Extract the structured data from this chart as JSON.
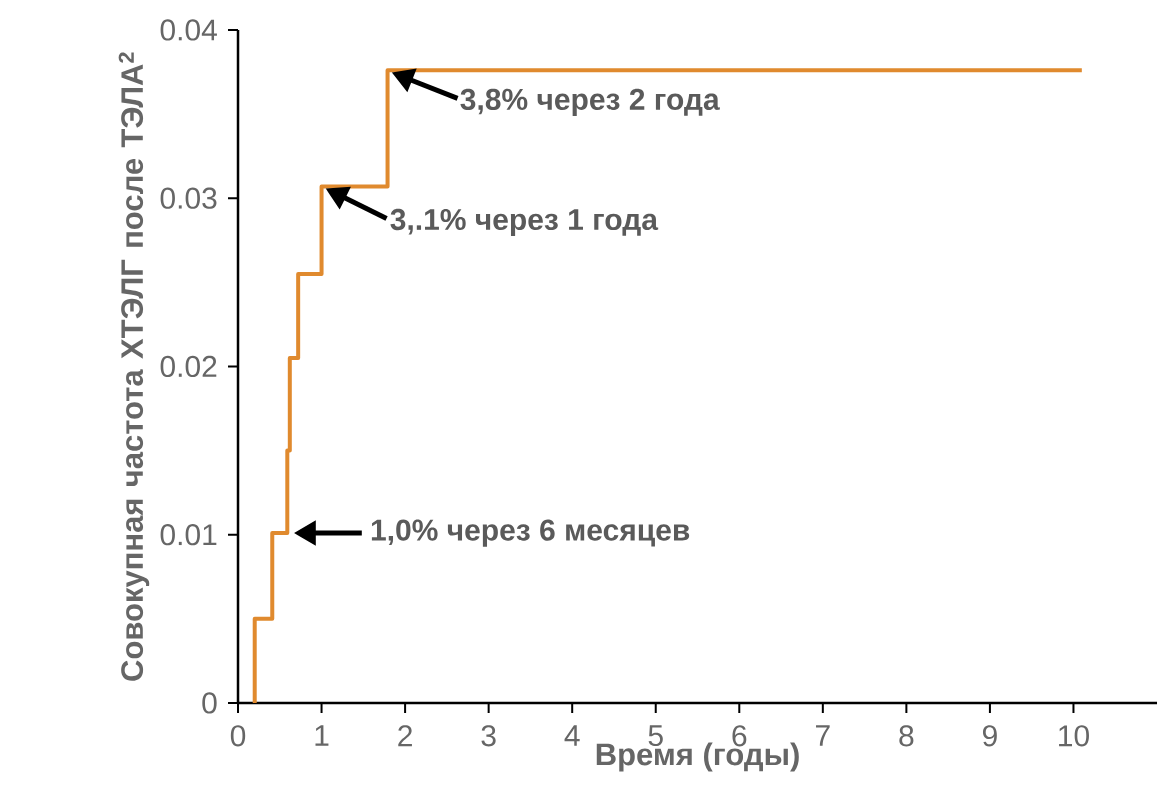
{
  "chart_data": {
    "type": "step",
    "xlabel": "Время (годы)",
    "ylabel": "Совокупная частота ХТЭЛГ после ТЭЛА$^{2}$",
    "x": [
      0.2,
      0.2,
      0.41,
      0.59,
      0.62,
      0.72,
      1.0,
      1.79,
      10.1
    ],
    "series": [
      {
        "color": "#e08a2e",
        "values": [
          0,
          0.005,
          0.0101,
          0.015,
          0.0205,
          0.0255,
          0.0307,
          0.0376,
          0.0376
        ]
      }
    ],
    "xlim": [
      0,
      11
    ],
    "xticks": [
      0,
      1,
      2,
      3,
      4,
      5,
      6,
      7,
      8,
      9,
      10
    ],
    "ylim": [
      0,
      0.04
    ],
    "yticks": [
      0,
      0.01,
      0.02,
      0.03,
      0.04
    ],
    "annotations": [
      {
        "text": "3,8% через 2 года",
        "x": 1.79,
        "y": 0.0376
      },
      {
        "text": "3,.1% через 1 года",
        "x": 1.0,
        "y": 0.0307
      },
      {
        "text": "1,0% через 6 месяцев",
        "x": 0.62,
        "y": 0.0101
      }
    ],
    "grid": false,
    "marker": "none"
  }
}
